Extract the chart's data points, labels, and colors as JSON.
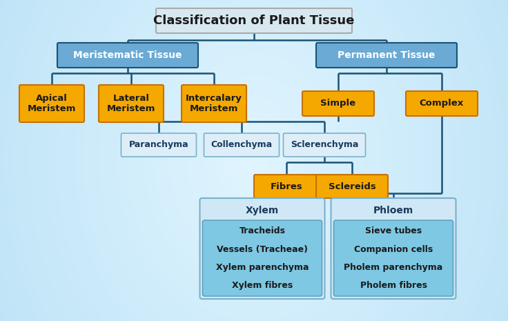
{
  "title": "Classification of Plant Tissue",
  "blue_box_color": "#6aaad4",
  "blue_box_edge": "#1a5276",
  "yellow_box_color": "#f5a800",
  "yellow_box_top": "#ffd050",
  "yellow_box_edge": "#c87000",
  "white_box_color": "#e8f4fb",
  "white_box_edge": "#5b9bd5",
  "list_box_color": "#7ec8e3",
  "list_box_header_color": "#d8edf8",
  "list_box_header_edge": "#8ab8d0",
  "title_box_color": "#ddeef8",
  "title_box_edge": "#aaaaaa",
  "line_color": "#1a5276",
  "bg_left": "#c8e8f5",
  "bg_right": "#7ec8e3",
  "nodes": {
    "root": {
      "label": "Classification of Plant Tissue"
    },
    "meristematic": {
      "label": "Meristematic Tissue"
    },
    "permanent": {
      "label": "Permanent Tissue"
    },
    "apical": {
      "label": "Apical\nMeristem"
    },
    "lateral": {
      "label": "Lateral\nMeristem"
    },
    "intercalary": {
      "label": "Intercalary\nMeristem"
    },
    "simple": {
      "label": "Simple"
    },
    "complex": {
      "label": "Complex"
    },
    "paranchyma": {
      "label": "Paranchyma"
    },
    "collenchyma": {
      "label": "Collenchyma"
    },
    "sclerenchyma": {
      "label": "Sclerenchyma"
    },
    "fibres": {
      "label": "Fibres"
    },
    "sclereids": {
      "label": "Sclereids"
    },
    "xylem": {
      "label": "Xylem",
      "items": [
        "Tracheids",
        "Vessels (Tracheae)",
        "Xylem parenchyma",
        "Xylem fibres"
      ]
    },
    "phloem": {
      "label": "Phloem",
      "items": [
        "Sieve tubes",
        "Companion cells",
        "Pholem parenchyma",
        "Pholem fibres"
      ]
    }
  }
}
